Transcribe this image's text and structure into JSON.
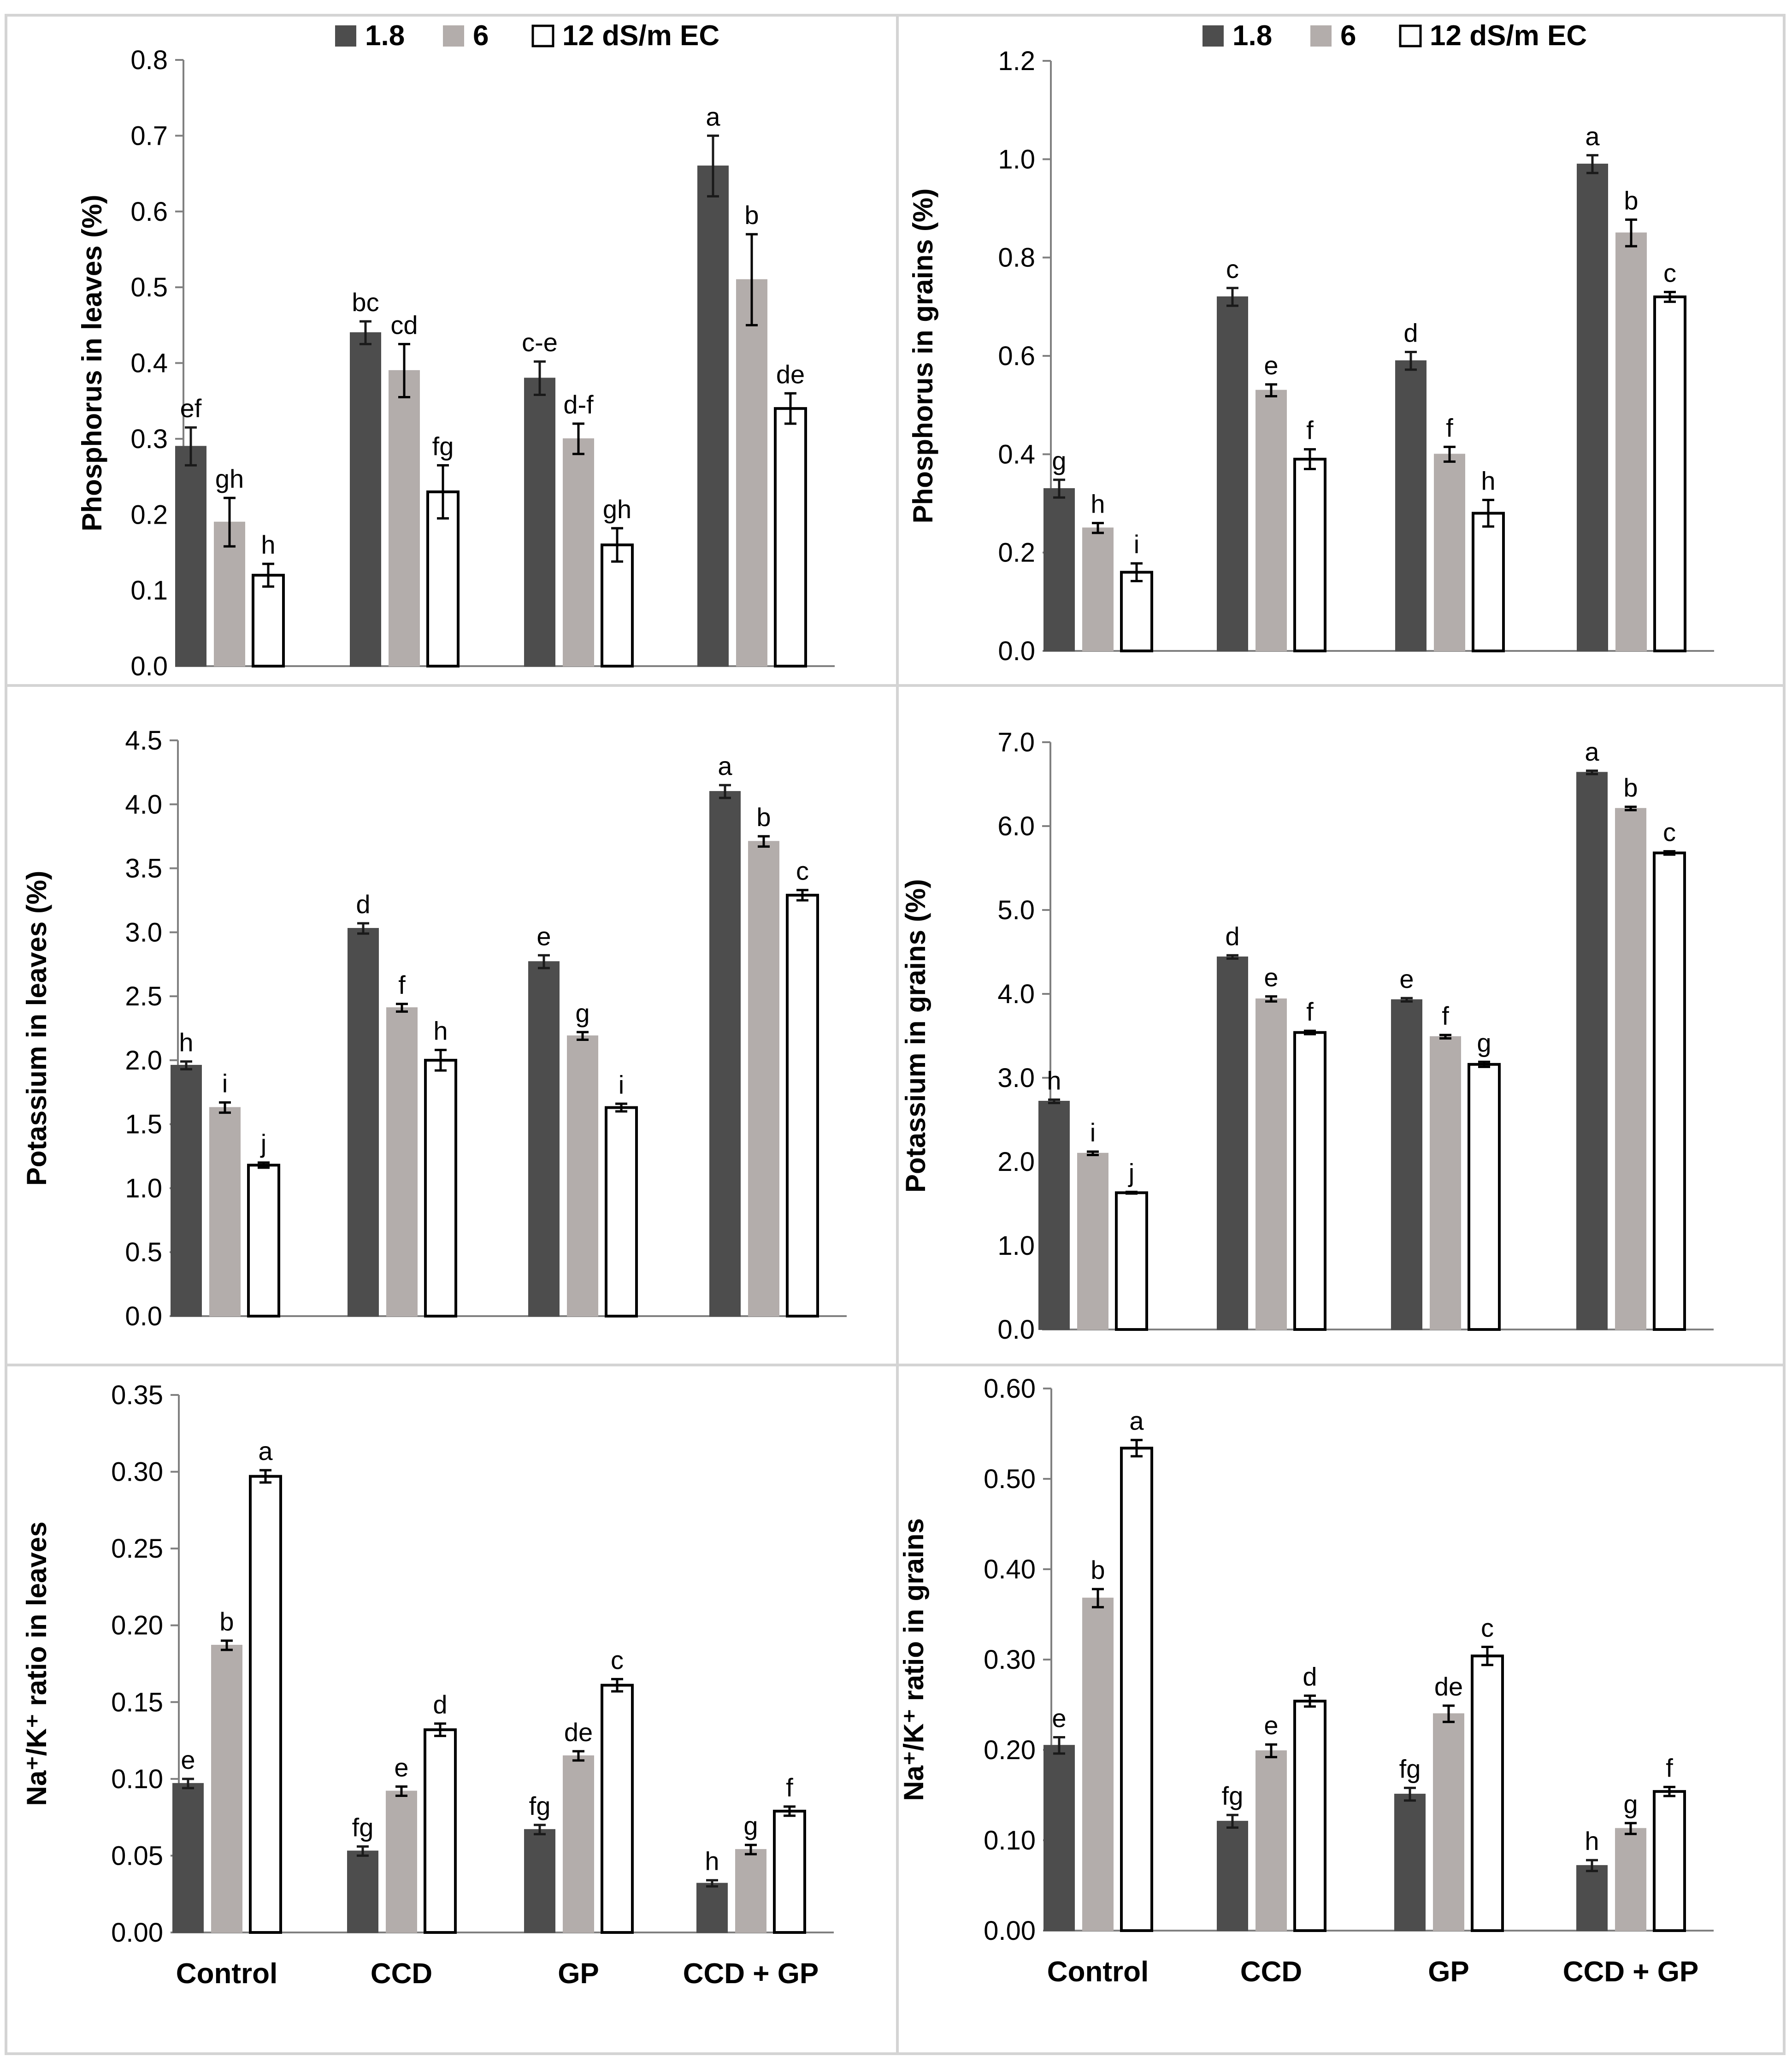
{
  "legend": [
    {
      "label": "1.8",
      "fill": "#4d4d4d",
      "stroke": "#4d4d4d"
    },
    {
      "label": "6",
      "fill": "#b3adab",
      "stroke": "#b3adab"
    },
    {
      "label": "12 dS/m EC",
      "fill": "#ffffff",
      "stroke": "#000000"
    }
  ],
  "chart_data": [
    {
      "type": "bar",
      "title": "",
      "ylabel": "Phosphorus in leaves (%)",
      "ylim": [
        0,
        0.8
      ],
      "yticks": [
        "0.0",
        "0.1",
        "0.2",
        "0.3",
        "0.4",
        "0.5",
        "0.6",
        "0.7",
        "0.8"
      ],
      "categories": [
        "Control",
        "CCD",
        "GP",
        "CCD + GP"
      ],
      "show_categories": false,
      "legend_shown": true,
      "series": [
        {
          "name": "1.8",
          "values": [
            0.29,
            0.44,
            0.38,
            0.66
          ],
          "errors": [
            0.025,
            0.015,
            0.022,
            0.04
          ],
          "letters": [
            "ef",
            "bc",
            "c-e",
            "a"
          ]
        },
        {
          "name": "6",
          "values": [
            0.19,
            0.39,
            0.3,
            0.51
          ],
          "errors": [
            0.032,
            0.035,
            0.02,
            0.06
          ],
          "letters": [
            "gh",
            "cd",
            "d-f",
            "b"
          ]
        },
        {
          "name": "12 dS/m EC",
          "values": [
            0.12,
            0.23,
            0.16,
            0.34
          ],
          "errors": [
            0.015,
            0.035,
            0.022,
            0.02
          ],
          "letters": [
            "h",
            "fg",
            "gh",
            "de"
          ]
        }
      ]
    },
    {
      "type": "bar",
      "title": "",
      "ylabel": "Phosphorus in grains (%)",
      "ylim": [
        0,
        1.2
      ],
      "yticks": [
        "0.0",
        "0.2",
        "0.4",
        "0.6",
        "0.8",
        "1.0",
        "1.2"
      ],
      "categories": [
        "Control",
        "CCD",
        "GP",
        "CCD + GP"
      ],
      "show_categories": false,
      "legend_shown": true,
      "series": [
        {
          "name": "1.8",
          "values": [
            0.33,
            0.72,
            0.59,
            0.99
          ],
          "errors": [
            0.018,
            0.018,
            0.018,
            0.018
          ],
          "letters": [
            "g",
            "c",
            "d",
            "a"
          ]
        },
        {
          "name": "6",
          "values": [
            0.25,
            0.53,
            0.4,
            0.85
          ],
          "errors": [
            0.01,
            0.012,
            0.015,
            0.027
          ],
          "letters": [
            "h",
            "e",
            "f",
            "b"
          ]
        },
        {
          "name": "12 dS/m EC",
          "values": [
            0.16,
            0.39,
            0.28,
            0.72
          ],
          "errors": [
            0.018,
            0.02,
            0.027,
            0.01
          ],
          "letters": [
            "i",
            "f",
            "h",
            "c"
          ]
        }
      ]
    },
    {
      "type": "bar",
      "title": "",
      "ylabel": "Potassium in leaves (%)",
      "ylim": [
        0,
        4.5
      ],
      "yticks": [
        "0.0",
        "0.5",
        "1.0",
        "1.5",
        "2.0",
        "2.5",
        "3.0",
        "3.5",
        "4.0",
        "4.5"
      ],
      "categories": [
        "Control",
        "CCD",
        "GP",
        "CCD + GP"
      ],
      "show_categories": false,
      "legend_shown": false,
      "series": [
        {
          "name": "1.8",
          "values": [
            1.96,
            3.03,
            2.77,
            4.1
          ],
          "errors": [
            0.03,
            0.04,
            0.05,
            0.05
          ],
          "letters": [
            "h",
            "d",
            "e",
            "a"
          ]
        },
        {
          "name": "6",
          "values": [
            1.63,
            2.41,
            2.19,
            3.71
          ],
          "errors": [
            0.04,
            0.03,
            0.03,
            0.04
          ],
          "letters": [
            "i",
            "f",
            "g",
            "b"
          ]
        },
        {
          "name": "12 dS/m EC",
          "values": [
            1.18,
            2.0,
            1.63,
            3.29
          ],
          "errors": [
            0.02,
            0.08,
            0.03,
            0.04
          ],
          "letters": [
            "j",
            "h",
            "i",
            "c"
          ]
        }
      ]
    },
    {
      "type": "bar",
      "title": "",
      "ylabel": "Potassium in grains (%)",
      "ylim": [
        0,
        7.0
      ],
      "yticks": [
        "0.0",
        "1.0",
        "2.0",
        "3.0",
        "4.0",
        "5.0",
        "6.0",
        "7.0"
      ],
      "categories": [
        "Control",
        "CCD",
        "GP",
        "CCD + GP"
      ],
      "show_categories": false,
      "legend_shown": false,
      "series": [
        {
          "name": "1.8",
          "values": [
            2.72,
            4.44,
            3.93,
            6.64
          ],
          "errors": [
            0.02,
            0.02,
            0.02,
            0.02
          ],
          "letters": [
            "h",
            "d",
            "e",
            "a"
          ]
        },
        {
          "name": "6",
          "values": [
            2.1,
            3.94,
            3.49,
            6.21
          ],
          "errors": [
            0.02,
            0.03,
            0.02,
            0.02
          ],
          "letters": [
            "i",
            "e",
            "f",
            "b"
          ]
        },
        {
          "name": "12 dS/m EC",
          "values": [
            1.63,
            3.54,
            3.16,
            5.68
          ],
          "errors": [
            0.01,
            0.02,
            0.03,
            0.02
          ],
          "letters": [
            "j",
            "f",
            "g",
            "c"
          ]
        }
      ]
    },
    {
      "type": "bar",
      "title": "",
      "ylabel": "Na⁺/K⁺ ratio in leaves",
      "ylim": [
        0,
        0.35
      ],
      "yticks": [
        "0.00",
        "0.05",
        "0.10",
        "0.15",
        "0.20",
        "0.25",
        "0.30",
        "0.35"
      ],
      "categories": [
        "Control",
        "CCD",
        "GP",
        "CCD + GP"
      ],
      "show_categories": true,
      "legend_shown": false,
      "series": [
        {
          "name": "1.8",
          "values": [
            0.097,
            0.053,
            0.067,
            0.032
          ],
          "errors": [
            0.003,
            0.003,
            0.003,
            0.002
          ],
          "letters": [
            "e",
            "fg",
            "fg",
            "h"
          ]
        },
        {
          "name": "6",
          "values": [
            0.187,
            0.092,
            0.115,
            0.054
          ],
          "errors": [
            0.003,
            0.003,
            0.003,
            0.003
          ],
          "letters": [
            "b",
            "e",
            "de",
            "g"
          ]
        },
        {
          "name": "12 dS/m EC",
          "values": [
            0.297,
            0.132,
            0.161,
            0.079
          ],
          "errors": [
            0.004,
            0.004,
            0.004,
            0.003
          ],
          "letters": [
            "a",
            "d",
            "c",
            "f"
          ]
        }
      ]
    },
    {
      "type": "bar",
      "title": "",
      "ylabel": "Na⁺/K⁺ ratio in grains",
      "ylim": [
        0,
        0.6
      ],
      "yticks": [
        "0.00",
        "0.10",
        "0.20",
        "0.30",
        "0.40",
        "0.50",
        "0.60"
      ],
      "categories": [
        "Control",
        "CCD",
        "GP",
        "CCD + GP"
      ],
      "show_categories": true,
      "legend_shown": false,
      "series": [
        {
          "name": "1.8",
          "values": [
            0.205,
            0.121,
            0.151,
            0.072
          ],
          "errors": [
            0.009,
            0.007,
            0.007,
            0.006
          ],
          "letters": [
            "e",
            "fg",
            "fg",
            "h"
          ]
        },
        {
          "name": "6",
          "values": [
            0.368,
            0.199,
            0.24,
            0.113
          ],
          "errors": [
            0.01,
            0.007,
            0.009,
            0.006
          ],
          "letters": [
            "b",
            "e",
            "de",
            "g"
          ]
        },
        {
          "name": "12 dS/m EC",
          "values": [
            0.534,
            0.254,
            0.304,
            0.154
          ],
          "errors": [
            0.009,
            0.006,
            0.01,
            0.005
          ],
          "letters": [
            "a",
            "d",
            "c",
            "f"
          ]
        }
      ]
    }
  ]
}
